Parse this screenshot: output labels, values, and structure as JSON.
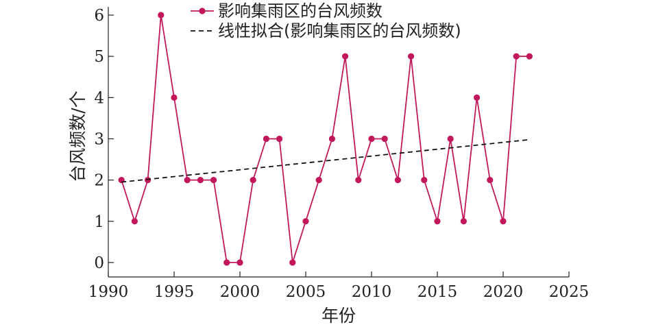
{
  "chart_data": {
    "type": "line",
    "xlabel": "年份",
    "ylabel": "台风频数/个",
    "xlim": [
      1990,
      2025
    ],
    "ylim": [
      -0.35,
      6.2
    ],
    "xticks": [
      1990,
      1995,
      2000,
      2005,
      2010,
      2015,
      2020,
      2025
    ],
    "yticks": [
      0,
      1,
      2,
      3,
      4,
      5,
      6
    ],
    "grid": false,
    "legend_position": "top",
    "series": [
      {
        "name": "影响集雨区的台风频数",
        "style": "line-marker",
        "color": "#c2185b",
        "x": [
          1991,
          1992,
          1993,
          1994,
          1995,
          1996,
          1997,
          1998,
          1999,
          2000,
          2001,
          2002,
          2003,
          2004,
          2005,
          2006,
          2007,
          2008,
          2009,
          2010,
          2011,
          2012,
          2013,
          2014,
          2015,
          2016,
          2017,
          2018,
          2019,
          2020,
          2021,
          2022
        ],
        "y": [
          2,
          1,
          2,
          6,
          4,
          2,
          2,
          2,
          0,
          0,
          2,
          3,
          3,
          0,
          1,
          2,
          3,
          5,
          2,
          3,
          3,
          2,
          5,
          2,
          1,
          3,
          1,
          4,
          2,
          1,
          5,
          5
        ]
      },
      {
        "name": "线性拟合(影响集雨区的台风频数)",
        "style": "dashed",
        "color": "#111111",
        "x": [
          1991,
          2022
        ],
        "y": [
          1.95,
          2.98
        ]
      }
    ]
  }
}
